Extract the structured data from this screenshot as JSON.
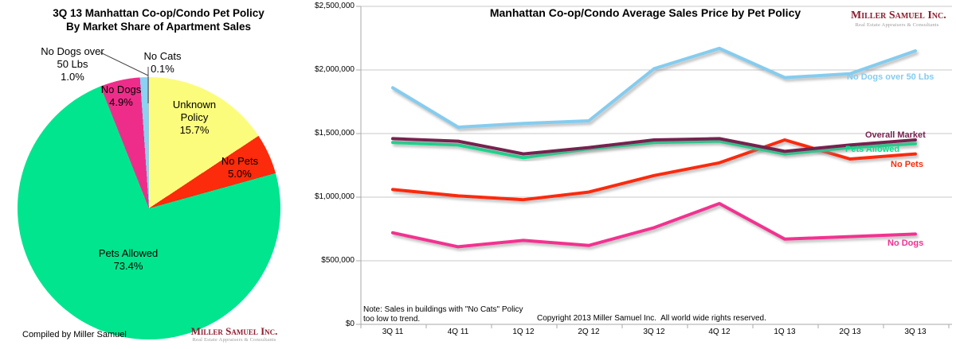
{
  "left_panel": {
    "title_line1": "3Q 13 Manhattan Co-op/Condo Pet Policy",
    "title_line2": "By Market Share of Apartment Sales",
    "compiled_by": "Compiled by Miller Samuel"
  },
  "right_panel": {
    "title": "Manhattan Co-op/Condo Average Sales Price by Pet Policy",
    "note_line1": "Note: Sales in buildings with \"No Cats\" Policy",
    "note_line2": "too low to trend.",
    "copyright": "Copyright 2013 Miller Samuel Inc.  All world wide rights reserved."
  },
  "logo": {
    "name": "Miller Samuel Inc.",
    "tagline": "Real Estate Appraisers & Consultants",
    "color": "#8E1C2E"
  },
  "chart_data": [
    {
      "type": "pie",
      "title": "3Q 13 Manhattan Co-op/Condo Pet Policy By Market Share of Apartment Sales",
      "start": "12 o'clock, clockwise",
      "slices": [
        {
          "label": "Unknown Policy",
          "label_lines": [
            "Unknown",
            "Policy"
          ],
          "pct": "15.7%",
          "value": 15.7,
          "color": "#FCFC7C"
        },
        {
          "label": "No Pets",
          "label_lines": [
            "No Pets"
          ],
          "pct": "5.0%",
          "value": 5.0,
          "color": "#FB2B0B"
        },
        {
          "label": "Pets Allowed",
          "label_lines": [
            "Pets Allowed"
          ],
          "pct": "73.4%",
          "value": 73.4,
          "color": "#00E58E"
        },
        {
          "label": "No Dogs",
          "label_lines": [
            "No Dogs"
          ],
          "pct": "4.9%",
          "value": 4.9,
          "color": "#EE2D8A"
        },
        {
          "label": "No Dogs over 50 Lbs",
          "label_lines": [
            "No Dogs over",
            "50 Lbs"
          ],
          "pct": "1.0%",
          "value": 1.0,
          "color": "#8AD1F2"
        },
        {
          "label": "No Cats",
          "label_lines": [
            "No Cats"
          ],
          "pct": "0.1%",
          "value": 0.1,
          "color": "#BFBFBF"
        }
      ]
    },
    {
      "type": "line",
      "title": "Manhattan Co-op/Condo Average Sales Price by Pet Policy",
      "categories": [
        "3Q 11",
        "4Q 11",
        "1Q 12",
        "2Q 12",
        "3Q 12",
        "4Q 12",
        "1Q 13",
        "2Q 13",
        "3Q 13"
      ],
      "y_ticks": [
        "$2,500,000",
        "$2,000,000",
        "$1,500,000",
        "$1,000,000",
        "$500,000",
        "$0"
      ],
      "ylim": [
        0,
        2500000
      ],
      "grid": "horizontal only",
      "legend": "labels at line ends",
      "series": [
        {
          "name": "No Dogs over 50 Lbs",
          "color": "#85CCEF",
          "values": [
            1860000,
            1550000,
            1580000,
            1600000,
            2010000,
            2170000,
            1940000,
            1970000,
            2150000
          ]
        },
        {
          "name": "No Dogs",
          "color": "#F23190",
          "values": [
            720000,
            610000,
            660000,
            620000,
            760000,
            950000,
            670000,
            690000,
            710000
          ]
        },
        {
          "name": "No Pets",
          "color": "#FB2B0B",
          "values": [
            1060000,
            1010000,
            980000,
            1040000,
            1170000,
            1270000,
            1450000,
            1300000,
            1340000
          ]
        },
        {
          "name": "Pets Allowed",
          "color": "#00E58E",
          "values": [
            1430000,
            1410000,
            1310000,
            1380000,
            1430000,
            1440000,
            1340000,
            1390000,
            1420000
          ]
        },
        {
          "name": "Overall Market",
          "color": "#76234F",
          "values": [
            1460000,
            1440000,
            1340000,
            1390000,
            1450000,
            1460000,
            1360000,
            1410000,
            1450000
          ]
        }
      ]
    }
  ]
}
